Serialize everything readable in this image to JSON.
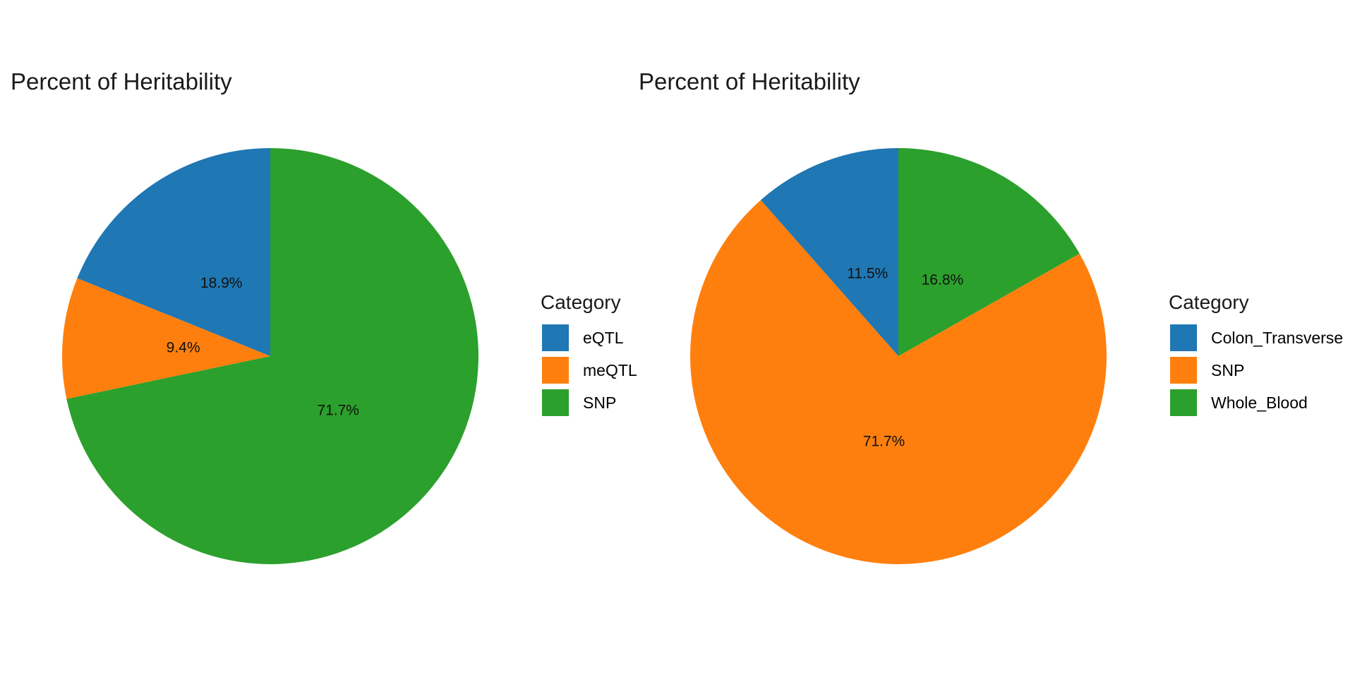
{
  "chart_data": [
    {
      "type": "pie",
      "title": "Percent of Heritability",
      "legend_title": "Category",
      "legend_position": "right",
      "start": "12 o'clock",
      "direction": "counterclockwise",
      "slices": [
        {
          "label": "eQTL",
          "value": 18.9,
          "text": "18.9%",
          "color": "#1F77B4"
        },
        {
          "label": "meQTL",
          "value": 9.4,
          "text": "9.4%",
          "color": "#FF7F0E"
        },
        {
          "label": "SNP",
          "value": 71.7,
          "text": "71.7%",
          "color": "#2CA02C"
        }
      ]
    },
    {
      "type": "pie",
      "title": "Percent of Heritability",
      "legend_title": "Category",
      "legend_position": "right",
      "start": "12 o'clock",
      "direction": "counterclockwise",
      "slices": [
        {
          "label": "Colon_Transverse",
          "value": 11.5,
          "text": "11.5%",
          "color": "#1F77B4"
        },
        {
          "label": "SNP",
          "value": 71.7,
          "text": "71.7%",
          "color": "#FF7F0E"
        },
        {
          "label": "Whole_Blood",
          "value": 16.8,
          "text": "16.8%",
          "color": "#2CA02C"
        }
      ]
    }
  ]
}
